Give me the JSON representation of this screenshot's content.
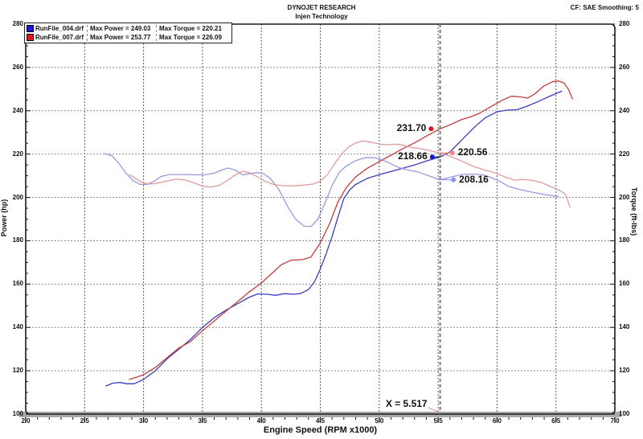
{
  "header": {
    "title": "DYNOJET RESEARCH",
    "subtitle": "Injen Technology",
    "correction": "CF: SAE  Smoothing: 5"
  },
  "legend": {
    "rows": [
      {
        "file": "RunFile_004.drf",
        "max_power": "Max Power = 249.03",
        "max_torque": "Max Torque = 220.21",
        "swatch_color": "#1a1ac8"
      },
      {
        "file": "RunFile_007.drf",
        "max_power": "Max Power = 253.77",
        "max_torque": "Max Torque = 226.09",
        "swatch_color": "#d41a1a"
      }
    ]
  },
  "cursor": {
    "label": "X = 5.517",
    "x": 5.517,
    "line_color": "#7a7a7a",
    "leader_color": "#e09090"
  },
  "chart_data": {
    "type": "line",
    "title": "DYNOJET RESEARCH - Injen Technology",
    "xlabel": "Engine Speed (RPM x1000)",
    "ylabel_left": "Power (hp)",
    "ylabel_right": "Torque (ft-lbs)",
    "x_range": [
      2.0,
      7.0
    ],
    "y_range": [
      100,
      280
    ],
    "x_major": 0.5,
    "x_minor": 0.1,
    "y_major": 20,
    "y_minor": 5,
    "grid": "dashed",
    "grid_color_v": "#5a5a5a",
    "grid_color_h": "#8a8a8a",
    "x_ticks": [
      "2.0",
      "2.5",
      "3.0",
      "3.5",
      "4.0",
      "4.5",
      "5.0",
      "5.5",
      "6.0",
      "6.5",
      "7.0"
    ],
    "y_ticks": [
      "280",
      "260",
      "240",
      "220",
      "200",
      "180",
      "160",
      "140",
      "120",
      "100"
    ],
    "legend_position": "top-left",
    "series": [
      {
        "id": "power-004",
        "name": "RunFile_004.drf Power (hp)",
        "color": "#3c3cc0",
        "points": [
          [
            2.68,
            113
          ],
          [
            2.74,
            114.3
          ],
          [
            2.8,
            114.6
          ],
          [
            2.86,
            114
          ],
          [
            2.92,
            114
          ],
          [
            3.0,
            116
          ],
          [
            3.1,
            120
          ],
          [
            3.2,
            125.5
          ],
          [
            3.3,
            130
          ],
          [
            3.4,
            134.5
          ],
          [
            3.5,
            140
          ],
          [
            3.6,
            144.5
          ],
          [
            3.7,
            148
          ],
          [
            3.8,
            151
          ],
          [
            3.9,
            154
          ],
          [
            3.97,
            155.5
          ],
          [
            4.05,
            155.3
          ],
          [
            4.12,
            154.8
          ],
          [
            4.2,
            155.6
          ],
          [
            4.27,
            155.3
          ],
          [
            4.33,
            155.6
          ],
          [
            4.4,
            157.5
          ],
          [
            4.45,
            161
          ],
          [
            4.5,
            167
          ],
          [
            4.55,
            174
          ],
          [
            4.6,
            182
          ],
          [
            4.65,
            191
          ],
          [
            4.7,
            199.5
          ],
          [
            4.75,
            203.5
          ],
          [
            4.8,
            206
          ],
          [
            4.9,
            208.8
          ],
          [
            5.0,
            210.5
          ],
          [
            5.1,
            212
          ],
          [
            5.2,
            213.5
          ],
          [
            5.3,
            215
          ],
          [
            5.4,
            216.8
          ],
          [
            5.517,
            218.66
          ],
          [
            5.6,
            221
          ],
          [
            5.7,
            226.5
          ],
          [
            5.8,
            232
          ],
          [
            5.9,
            236.8
          ],
          [
            6.0,
            239.5
          ],
          [
            6.08,
            240.3
          ],
          [
            6.17,
            240.5
          ],
          [
            6.25,
            242
          ],
          [
            6.35,
            244.3
          ],
          [
            6.45,
            246.8
          ],
          [
            6.55,
            249.03
          ]
        ]
      },
      {
        "id": "power-007",
        "name": "RunFile_007.drf Power (hp)",
        "color": "#c43c3c",
        "points": [
          [
            2.88,
            116
          ],
          [
            2.95,
            117.2
          ],
          [
            3.0,
            118.2
          ],
          [
            3.1,
            121.5
          ],
          [
            3.2,
            126
          ],
          [
            3.3,
            130.5
          ],
          [
            3.4,
            133.5
          ],
          [
            3.5,
            138.5
          ],
          [
            3.6,
            143
          ],
          [
            3.7,
            147.5
          ],
          [
            3.8,
            152
          ],
          [
            3.9,
            156.5
          ],
          [
            4.0,
            160.5
          ],
          [
            4.1,
            165.5
          ],
          [
            4.17,
            169
          ],
          [
            4.25,
            171
          ],
          [
            4.35,
            171.3
          ],
          [
            4.42,
            172.5
          ],
          [
            4.5,
            179
          ],
          [
            4.58,
            188
          ],
          [
            4.65,
            198
          ],
          [
            4.72,
            204.5
          ],
          [
            4.8,
            209.5
          ],
          [
            4.9,
            213.5
          ],
          [
            5.0,
            216.5
          ],
          [
            5.1,
            219.5
          ],
          [
            5.2,
            222.5
          ],
          [
            5.3,
            225.2
          ],
          [
            5.4,
            228.3
          ],
          [
            5.517,
            231.7
          ],
          [
            5.6,
            233.5
          ],
          [
            5.7,
            236
          ],
          [
            5.78,
            237.3
          ],
          [
            5.85,
            238.8
          ],
          [
            5.95,
            242
          ],
          [
            6.05,
            245
          ],
          [
            6.12,
            246.7
          ],
          [
            6.2,
            246.4
          ],
          [
            6.26,
            245.8
          ],
          [
            6.32,
            247.8
          ],
          [
            6.4,
            251.5
          ],
          [
            6.47,
            253.4
          ],
          [
            6.52,
            253.77
          ],
          [
            6.57,
            252.8
          ],
          [
            6.61,
            249.5
          ],
          [
            6.64,
            245.5
          ]
        ]
      },
      {
        "id": "torque-004",
        "name": "RunFile_004.drf Torque (ft-lbs)",
        "color": "#9a9ade",
        "points": [
          [
            2.67,
            220.21
          ],
          [
            2.73,
            219.3
          ],
          [
            2.79,
            215.8
          ],
          [
            2.85,
            211.3
          ],
          [
            2.91,
            207.8
          ],
          [
            2.97,
            206
          ],
          [
            3.03,
            206
          ],
          [
            3.09,
            207.5
          ],
          [
            3.15,
            209.7
          ],
          [
            3.22,
            210.6
          ],
          [
            3.32,
            210.6
          ],
          [
            3.42,
            210.5
          ],
          [
            3.52,
            210.4
          ],
          [
            3.6,
            211.2
          ],
          [
            3.66,
            212.6
          ],
          [
            3.72,
            213.6
          ],
          [
            3.78,
            212.6
          ],
          [
            3.84,
            210.4
          ],
          [
            3.9,
            210.9
          ],
          [
            3.96,
            211.5
          ],
          [
            4.02,
            211
          ],
          [
            4.08,
            208.5
          ],
          [
            4.15,
            203.5
          ],
          [
            4.22,
            196
          ],
          [
            4.29,
            190
          ],
          [
            4.36,
            186.8
          ],
          [
            4.42,
            186.5
          ],
          [
            4.48,
            190
          ],
          [
            4.54,
            197.5
          ],
          [
            4.6,
            205.5
          ],
          [
            4.66,
            211.5
          ],
          [
            4.72,
            214.5
          ],
          [
            4.8,
            217
          ],
          [
            4.88,
            218.3
          ],
          [
            4.95,
            218.4
          ],
          [
            5.02,
            217.5
          ],
          [
            5.1,
            215.5
          ],
          [
            5.17,
            213.7
          ],
          [
            5.25,
            212.6
          ],
          [
            5.33,
            211.8
          ],
          [
            5.42,
            210
          ],
          [
            5.517,
            208.16
          ],
          [
            5.6,
            209.3
          ],
          [
            5.7,
            210.6
          ],
          [
            5.8,
            210.8
          ],
          [
            5.88,
            210.4
          ],
          [
            5.95,
            209.2
          ],
          [
            6.02,
            207.5
          ],
          [
            6.1,
            205
          ],
          [
            6.2,
            203.6
          ],
          [
            6.3,
            202.4
          ],
          [
            6.4,
            201.4
          ],
          [
            6.52,
            200.4
          ]
        ]
      },
      {
        "id": "torque-007",
        "name": "RunFile_007.drf Torque (ft-lbs)",
        "color": "#e09c9c",
        "points": [
          [
            2.88,
            210.6
          ],
          [
            2.93,
            208.8
          ],
          [
            2.99,
            206.8
          ],
          [
            3.05,
            206.2
          ],
          [
            3.12,
            206.6
          ],
          [
            3.2,
            207.6
          ],
          [
            3.28,
            208.4
          ],
          [
            3.35,
            208.1
          ],
          [
            3.42,
            206.9
          ],
          [
            3.5,
            205.2
          ],
          [
            3.57,
            204.8
          ],
          [
            3.64,
            205.5
          ],
          [
            3.71,
            207.8
          ],
          [
            3.78,
            210.5
          ],
          [
            3.84,
            212
          ],
          [
            3.9,
            211.4
          ],
          [
            3.96,
            209.7
          ],
          [
            4.03,
            207.5
          ],
          [
            4.1,
            206
          ],
          [
            4.18,
            205.4
          ],
          [
            4.27,
            205.3
          ],
          [
            4.36,
            205.7
          ],
          [
            4.44,
            206.2
          ],
          [
            4.5,
            207.5
          ],
          [
            4.56,
            210.5
          ],
          [
            4.62,
            215.5
          ],
          [
            4.68,
            220
          ],
          [
            4.74,
            223.3
          ],
          [
            4.8,
            225.2
          ],
          [
            4.86,
            226.09
          ],
          [
            4.93,
            225.5
          ],
          [
            5.0,
            224.6
          ],
          [
            5.07,
            224.3
          ],
          [
            5.14,
            224.6
          ],
          [
            5.2,
            224.2
          ],
          [
            5.27,
            223.1
          ],
          [
            5.35,
            222.5
          ],
          [
            5.43,
            221.6
          ],
          [
            5.517,
            220.56
          ],
          [
            5.6,
            219
          ],
          [
            5.7,
            216.8
          ],
          [
            5.8,
            214.3
          ],
          [
            5.9,
            212.6
          ],
          [
            6.0,
            211
          ],
          [
            6.08,
            209.2
          ],
          [
            6.15,
            208
          ],
          [
            6.22,
            208.3
          ],
          [
            6.3,
            207.9
          ],
          [
            6.38,
            206.8
          ],
          [
            6.46,
            204.9
          ],
          [
            6.53,
            203.3
          ],
          [
            6.58,
            201.5
          ],
          [
            6.62,
            195.5
          ]
        ]
      }
    ],
    "markers": [
      {
        "label": "231.70",
        "value": 231.7,
        "rpm": 5.44,
        "color": "#e01414",
        "side": "left",
        "leader_to_cursor": false,
        "leader_color": "#111111"
      },
      {
        "label": "218.66",
        "value": 218.66,
        "rpm": 5.45,
        "color": "#1414e0",
        "side": "left",
        "leader_to_cursor": true,
        "leader_color": "#111111"
      },
      {
        "label": "220.56",
        "value": 220.56,
        "rpm": 5.62,
        "color": "#ee8888",
        "side": "right",
        "leader_to_cursor": true,
        "leader_color": "#ee8888"
      },
      {
        "label": "208.16",
        "value": 208.16,
        "rpm": 5.63,
        "color": "#9090ee",
        "side": "right",
        "leader_to_cursor": true,
        "leader_color": "#9090ee"
      }
    ]
  }
}
